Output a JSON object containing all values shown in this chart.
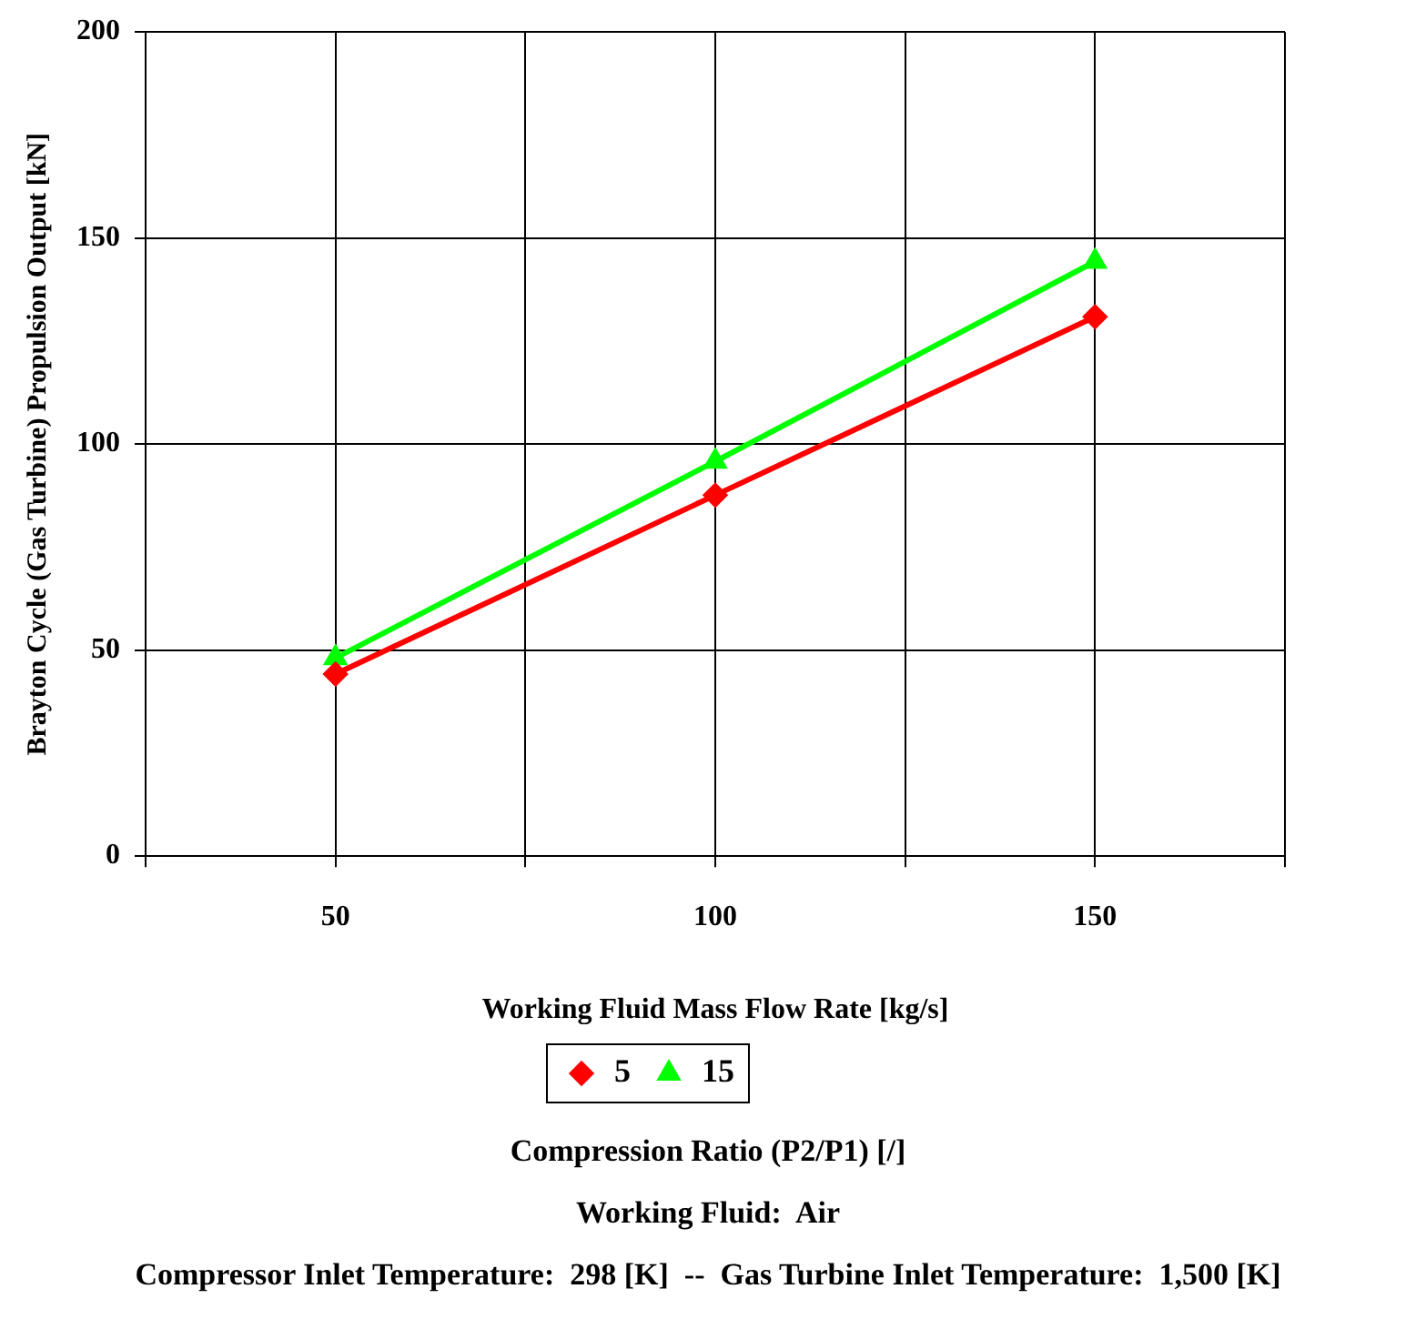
{
  "chart_data": {
    "type": "line",
    "xlabel": "Working Fluid Mass Flow Rate [kg/s]",
    "ylabel": "Brayton Cycle (Gas Turbine) Propulsion Output [kN]",
    "legend_title": "Compression Ratio (P2/P1) [/]",
    "x": [
      50,
      100,
      150
    ],
    "series": [
      {
        "name": "5",
        "color": "#ff0000",
        "marker": "diamond",
        "values": [
          44.2,
          87.6,
          130.9
        ]
      },
      {
        "name": "15",
        "color": "#00ff00",
        "marker": "triangle",
        "values": [
          48.1,
          95.8,
          144.3
        ]
      }
    ],
    "xlim": [
      25,
      175
    ],
    "xticks": [
      {
        "value": 25,
        "label": null
      },
      50,
      {
        "value": 75,
        "label": null
      },
      100,
      {
        "value": 125,
        "label": null
      },
      150,
      {
        "value": 175,
        "label": null
      }
    ],
    "ylim": [
      0,
      200
    ],
    "yticks": [
      0,
      50,
      100,
      150,
      200
    ],
    "grid": true,
    "legend": "bottom",
    "line_style": "solid",
    "annotations": [
      "Working Fluid:  Air",
      "Compressor Inlet Temperature:  298 [K]  --  Gas Turbine Inlet Temperature:  1,500 [K]"
    ]
  }
}
